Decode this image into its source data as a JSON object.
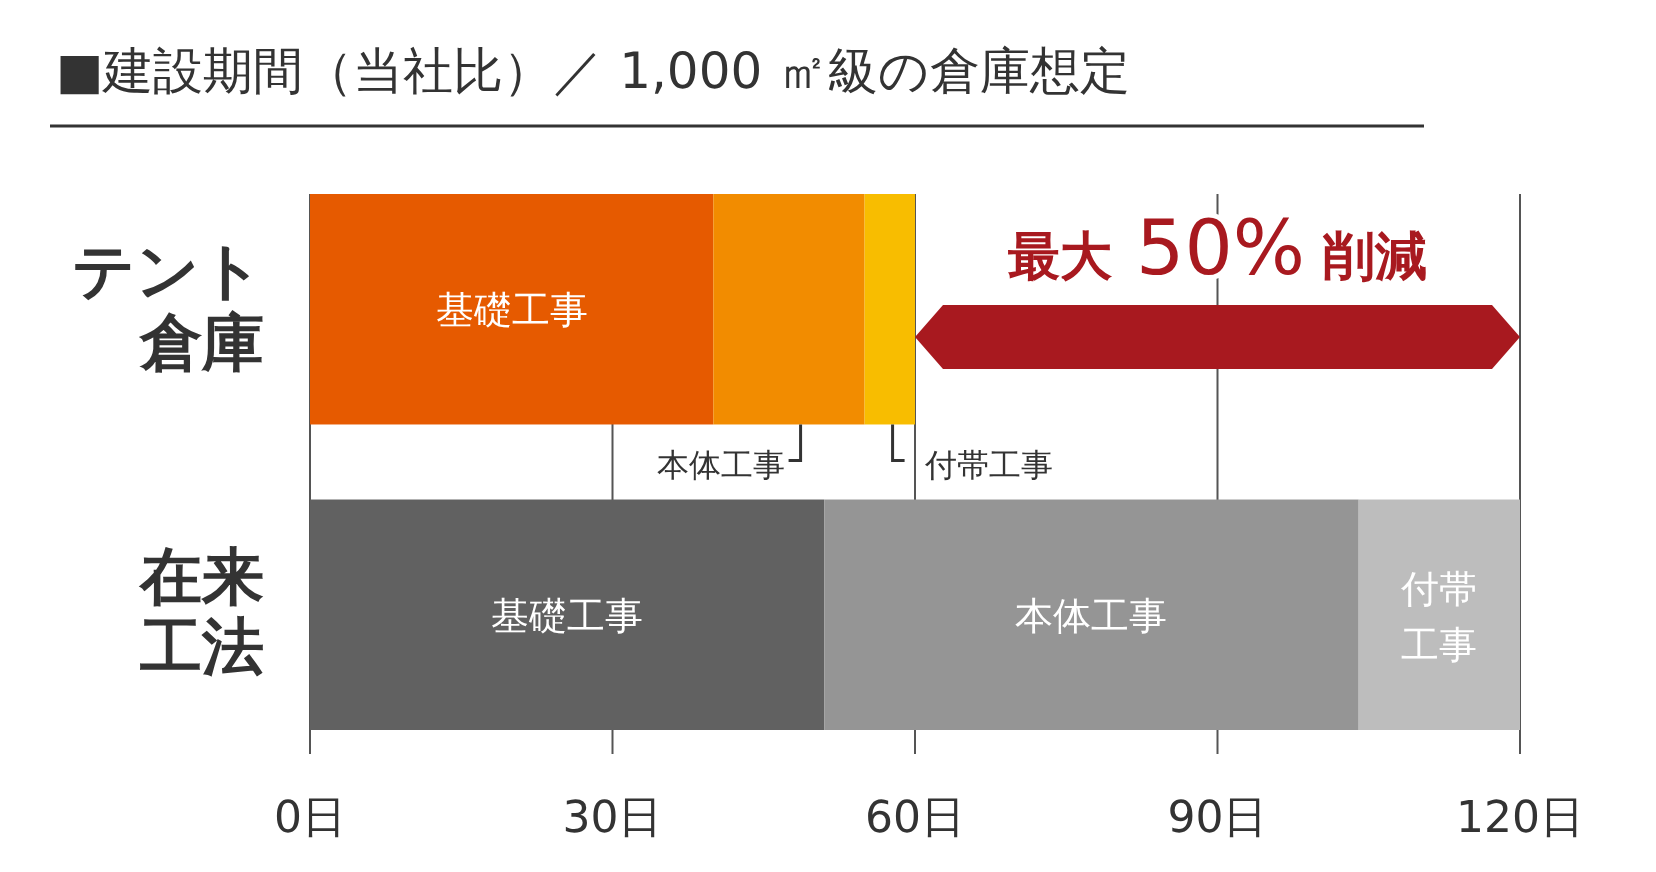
{
  "chart_data": {
    "type": "bar",
    "orientation": "horizontal",
    "stacked": true,
    "title": "■建設期間（当社比）／ 1,000 ㎡級の倉庫想定",
    "categories": [
      "テント倉庫",
      "在来工法"
    ],
    "series": [
      {
        "name": "基礎工事",
        "colors": [
          "#e65a00",
          "#616161"
        ],
        "values": [
          40,
          51
        ]
      },
      {
        "name": "本体工事",
        "colors": [
          "#f28c00",
          "#959595"
        ],
        "values": [
          15,
          53
        ]
      },
      {
        "name": "付帯工事",
        "colors": [
          "#f8bd00",
          "#bdbdbd"
        ],
        "values": [
          5,
          16
        ]
      }
    ],
    "xlim": [
      0,
      120
    ],
    "xticks": [
      {
        "value": 0,
        "label": "0日"
      },
      {
        "value": 30,
        "label": "30日"
      },
      {
        "value": 60,
        "label": "60日"
      },
      {
        "value": 90,
        "label": "90日"
      },
      {
        "value": 120,
        "label": "120日"
      }
    ],
    "grid": "x",
    "annotations": [
      "最大 50% 削減"
    ]
  }
}
